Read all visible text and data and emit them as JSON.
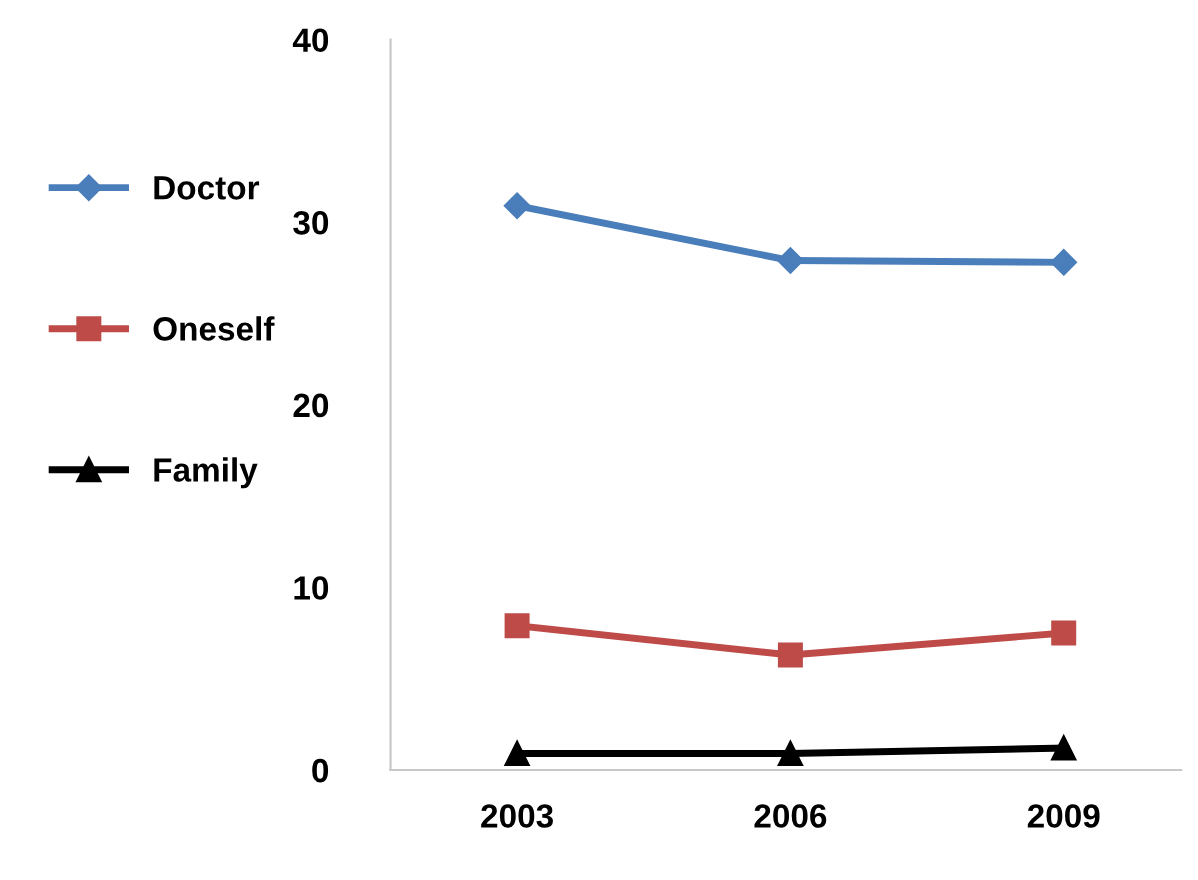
{
  "chart_data": {
    "type": "line",
    "categories": [
      "2003",
      "2006",
      "2009"
    ],
    "series": [
      {
        "name": "Doctor",
        "color": "#4a7ebb",
        "marker": "diamond",
        "values": [
          30.9,
          27.9,
          27.8
        ]
      },
      {
        "name": "Oneself",
        "color": "#be4b48",
        "marker": "square",
        "values": [
          7.9,
          6.3,
          7.5
        ]
      },
      {
        "name": "Family",
        "color": "#000000",
        "marker": "triangle",
        "values": [
          0.9,
          0.9,
          1.2
        ]
      }
    ],
    "ylim": [
      0,
      40
    ],
    "yticks": [
      0,
      10,
      20,
      30,
      40
    ],
    "grid": false,
    "legend": "left",
    "line_style": "solid"
  }
}
